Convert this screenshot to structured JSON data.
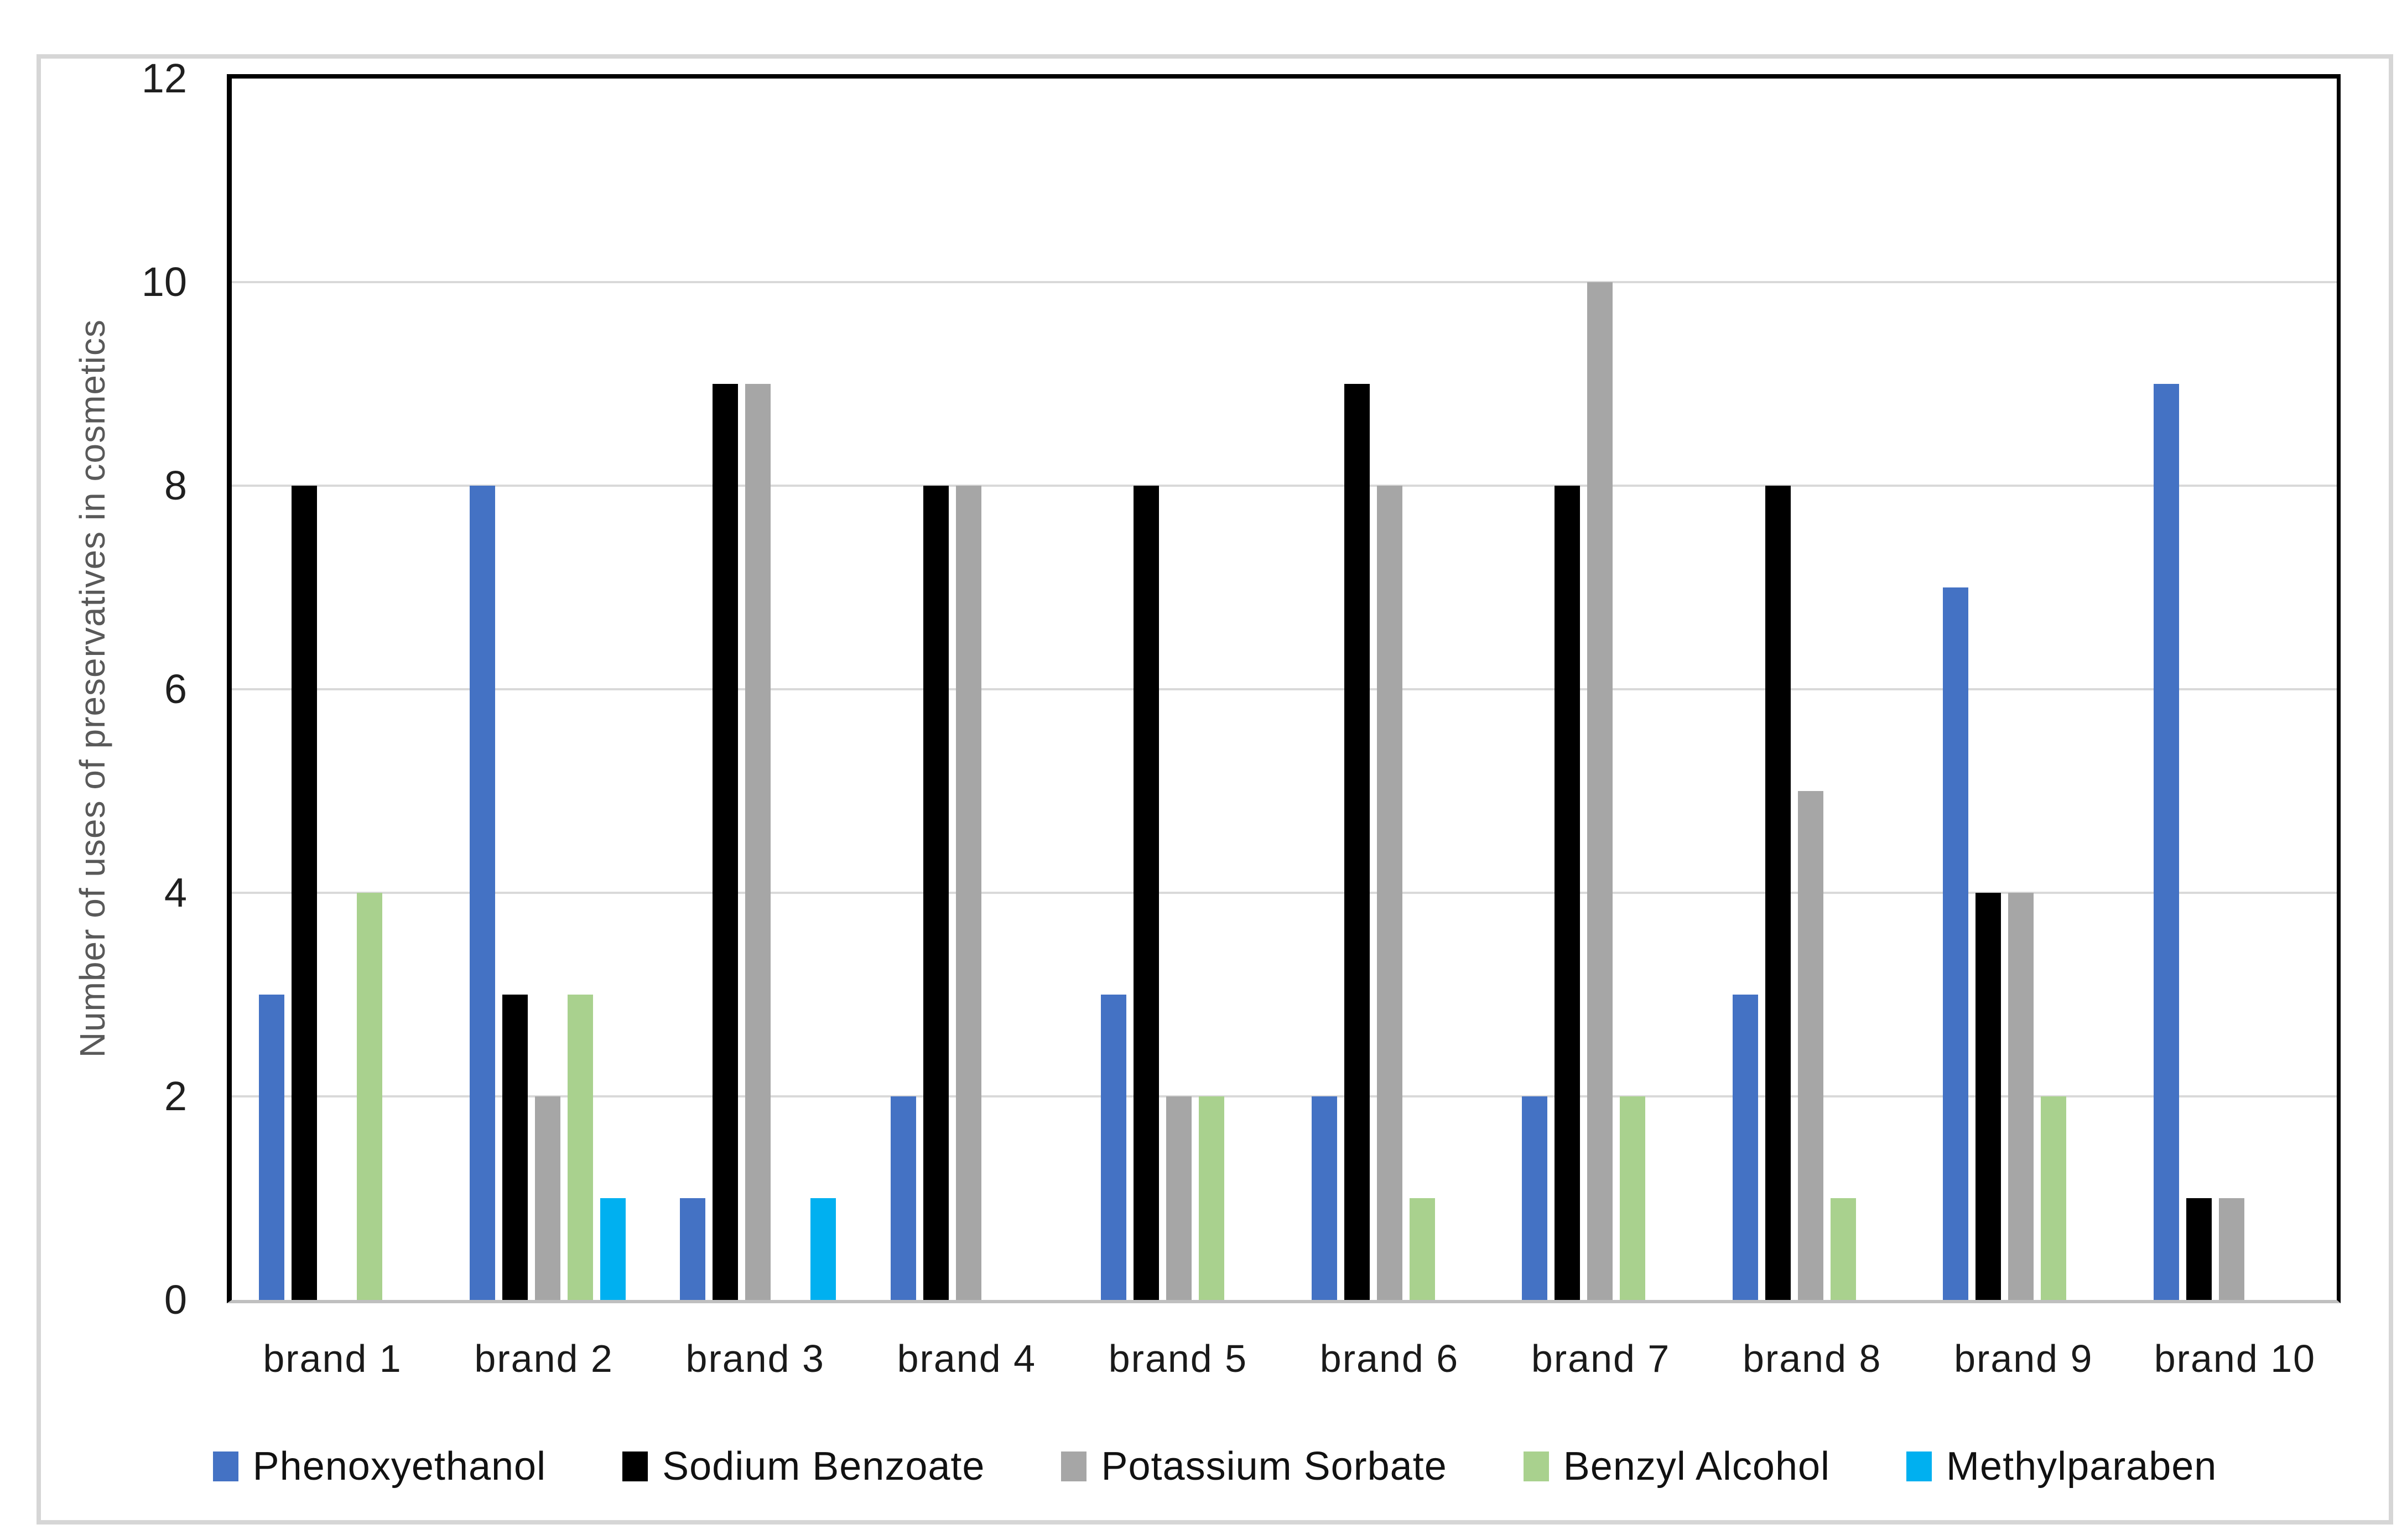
{
  "chart_data": {
    "type": "bar",
    "title": "",
    "xlabel": "",
    "ylabel": "Number of uses of preservatives in cosmetics",
    "ylim": [
      0,
      12
    ],
    "yticks": [
      0,
      2,
      4,
      6,
      8,
      10,
      12
    ],
    "grid": true,
    "legend_position": "bottom",
    "categories": [
      "brand 1",
      "brand 2",
      "brand 3",
      "brand 4",
      "brand 5",
      "brand 6",
      "brand 7",
      "brand 8",
      "brand 9",
      "brand 10"
    ],
    "series": [
      {
        "name": "Phenoxyethanol",
        "color": "#4472C4",
        "values": [
          3,
          8,
          1,
          2,
          3,
          2,
          2,
          3,
          7,
          9
        ]
      },
      {
        "name": "Sodium Benzoate",
        "color": "#000000",
        "values": [
          8,
          3,
          9,
          8,
          8,
          9,
          8,
          8,
          4,
          1
        ]
      },
      {
        "name": "Potassium Sorbate",
        "color": "#A6A6A6",
        "values": [
          0,
          2,
          9,
          8,
          2,
          8,
          10,
          5,
          4,
          1
        ]
      },
      {
        "name": "Benzyl Alcohol",
        "color": "#A9D18E",
        "values": [
          4,
          3,
          0,
          0,
          2,
          1,
          2,
          1,
          2,
          0
        ]
      },
      {
        "name": "Methylparaben",
        "color": "#00B0F0",
        "values": [
          0,
          1,
          1,
          0,
          0,
          0,
          0,
          0,
          0,
          0
        ]
      }
    ],
    "colors": {
      "plot_border": "#000000",
      "axis_line": "#bfbfbf",
      "gridline": "#d9d9d9",
      "frame_border": "#d6d6d6",
      "tick_text": "#1f1f1f",
      "axis_title_text": "#595959"
    }
  }
}
